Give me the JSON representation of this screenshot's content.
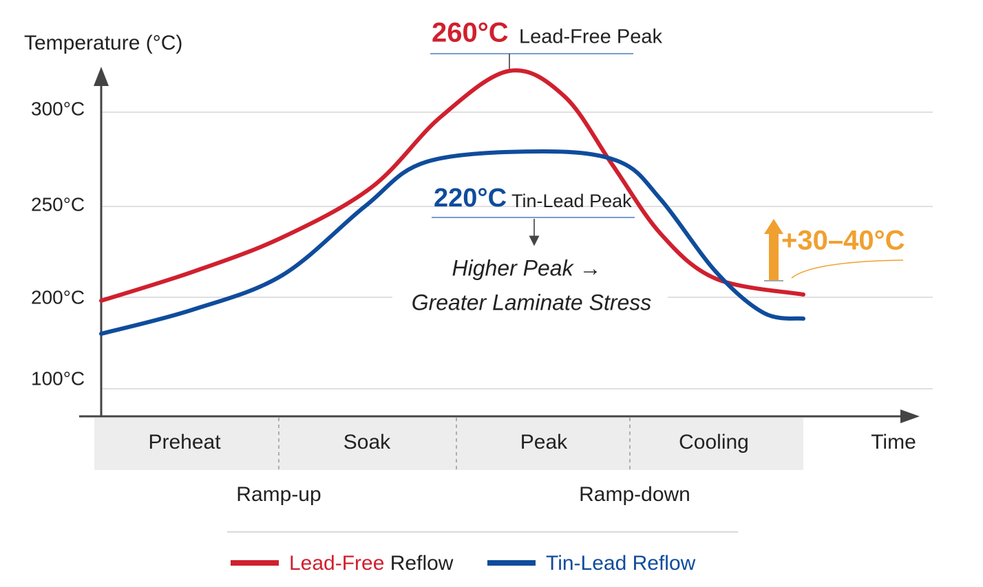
{
  "axis": {
    "y_title": "Temperature (°C)",
    "y_ticks": [
      "300°C",
      "250°C",
      "200°C",
      "100°C"
    ],
    "x_title": "Time"
  },
  "phases": [
    "Preheat",
    "Soak",
    "Peak",
    "Cooling"
  ],
  "ramps": [
    "Ramp-up",
    "Ramp-down"
  ],
  "annotations": {
    "lead_free_peak_value": "260°C",
    "lead_free_peak_label": "Lead-Free Peak",
    "tin_lead_peak_value": "220°C",
    "tin_lead_peak_label": "Tin-Lead Peak",
    "note_line1": "Higher Peak →",
    "note_line2": "Greater Laminate Stress",
    "difference": "+30–40°C"
  },
  "legend": {
    "lead_free_name": "Lead-Free",
    "lead_free_suffix": "Reflow",
    "tin_lead": "Tin-Lead Reflow"
  }
}
